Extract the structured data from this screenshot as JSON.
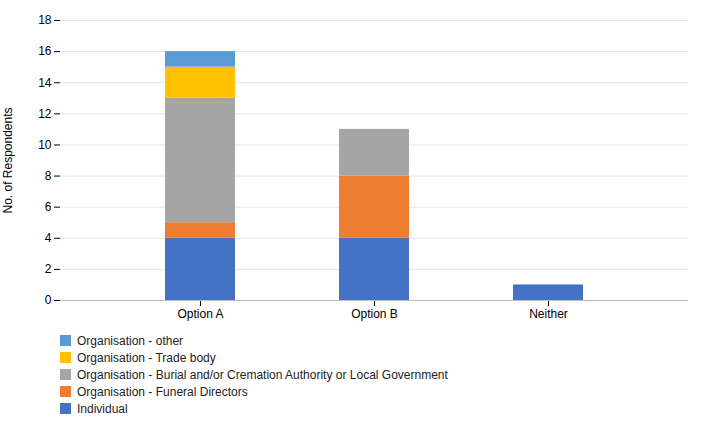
{
  "chart_data": {
    "type": "bar",
    "stacked": true,
    "categories": [
      "Option A",
      "Option B",
      "Neither"
    ],
    "series": [
      {
        "name": "Individual",
        "color": "#4472C4",
        "values": [
          4,
          4,
          1
        ]
      },
      {
        "name": "Organisation - Funeral Directors",
        "color": "#ED7D31",
        "values": [
          1,
          4,
          0
        ]
      },
      {
        "name": "Organisation - Burial and/or Cremation Authority or Local Government",
        "color": "#A5A5A5",
        "values": [
          8,
          3,
          0
        ]
      },
      {
        "name": "Organisation - Trade body",
        "color": "#FFC000",
        "values": [
          2,
          0,
          0
        ]
      },
      {
        "name": "Organisation - other",
        "color": "#5B9BD5",
        "values": [
          1,
          0,
          0
        ]
      }
    ],
    "ylabel": "No. of Respondents",
    "ylim": [
      0,
      18
    ],
    "yticks": [
      0,
      2,
      4,
      6,
      8,
      10,
      12,
      14,
      16,
      18
    ],
    "grid": true,
    "legend": "lower left"
  }
}
